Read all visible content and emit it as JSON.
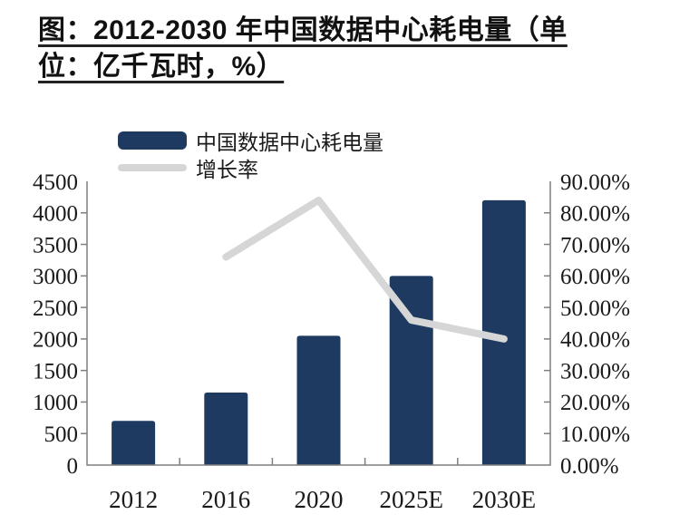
{
  "title": {
    "full": "图：2012-2030 年中国数据中心耗电量（单位：亿千瓦时，%）",
    "line1": "图：2012-2030 年中国数据中心耗电量（单",
    "line2": "位：亿千瓦时，%）"
  },
  "legend": {
    "items": [
      {
        "label": "中国数据中心耗电量",
        "swatch": "bar",
        "color": "#1F3A60"
      },
      {
        "label": "增长率",
        "swatch": "line",
        "color": "#D6D6D6"
      }
    ]
  },
  "chart_data": {
    "type": "bar",
    "title": "2012-2030 年中国数据中心耗电量",
    "unit_note": "亿千瓦时，%",
    "categories": [
      "2012",
      "2016",
      "2020",
      "2025E",
      "2030E"
    ],
    "series": [
      {
        "name": "中国数据中心耗电量",
        "chart_type": "bar",
        "axis": "left",
        "unit": "亿千瓦时",
        "color": "#1F3A60",
        "values": [
          700,
          1150,
          2050,
          3000,
          4200
        ]
      },
      {
        "name": "增长率",
        "chart_type": "line",
        "axis": "right",
        "unit": "%",
        "color": "#D6D6D6",
        "values": [
          null,
          66,
          84,
          46,
          40
        ]
      }
    ],
    "left_axis": {
      "min": 0,
      "max": 4500,
      "step": 500,
      "tick_labels": [
        "0",
        "500",
        "1000",
        "1500",
        "2000",
        "2500",
        "3000",
        "3500",
        "4000",
        "4500"
      ]
    },
    "right_axis": {
      "min": 0,
      "max": 90,
      "step": 10,
      "tick_labels": [
        "0.00%",
        "10.00%",
        "20.00%",
        "30.00%",
        "40.00%",
        "50.00%",
        "60.00%",
        "70.00%",
        "80.00%",
        "90.00%"
      ]
    },
    "grid": false,
    "legend_position": "top-left",
    "axis_color": "#7f7f7f",
    "text_color": "#1a1a1a"
  }
}
